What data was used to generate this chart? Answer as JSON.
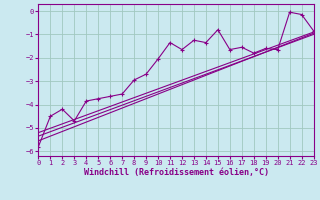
{
  "xlabel": "Windchill (Refroidissement éolien,°C)",
  "xlim": [
    0,
    23
  ],
  "ylim": [
    -6.2,
    0.3
  ],
  "yticks": [
    0,
    -1,
    -2,
    -3,
    -4,
    -5,
    -6
  ],
  "xticks": [
    0,
    1,
    2,
    3,
    4,
    5,
    6,
    7,
    8,
    9,
    10,
    11,
    12,
    13,
    14,
    15,
    16,
    17,
    18,
    19,
    20,
    21,
    22,
    23
  ],
  "bg_color": "#cbe9f0",
  "grid_color": "#a0c8c0",
  "line_color": "#880088",
  "curve1_x": [
    0,
    1,
    2,
    3,
    4,
    5,
    6,
    7,
    8,
    9,
    10,
    11,
    12,
    13,
    14,
    15,
    16,
    17,
    18,
    19,
    20,
    21,
    22,
    23
  ],
  "curve1_y": [
    -5.8,
    -4.5,
    -4.2,
    -4.7,
    -3.85,
    -3.75,
    -3.65,
    -3.55,
    -2.95,
    -2.7,
    -2.05,
    -1.35,
    -1.65,
    -1.25,
    -1.35,
    -0.8,
    -1.65,
    -1.55,
    -1.8,
    -1.6,
    -1.65,
    -0.05,
    -0.15,
    -0.85
  ],
  "line1_x": [
    0,
    23
  ],
  "line1_y": [
    -5.55,
    -0.95
  ],
  "line2_x": [
    0,
    23
  ],
  "line2_y": [
    -5.35,
    -1.0
  ],
  "line3_x": [
    0,
    23
  ],
  "line3_y": [
    -5.2,
    -0.9
  ],
  "font_family": "monospace",
  "tick_fontsize": 5.0,
  "xlabel_fontsize": 6.0
}
